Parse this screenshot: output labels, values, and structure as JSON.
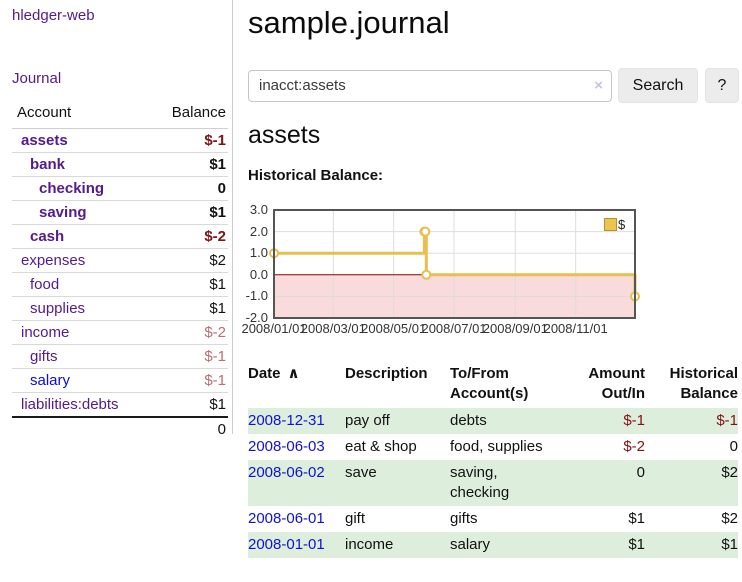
{
  "app": {
    "brand": "hledger-web",
    "nav_journal": "Journal"
  },
  "colors": {
    "link_purple": "#551a8b",
    "link_blue": "#1111d4",
    "negative_strong": "#801313",
    "negative_soft": "#b96e74",
    "row_stripe_green": "#ddeedd",
    "chart_gold": "#e7bf4e",
    "chart_negative_region": "#f9dbdb",
    "chart_zero_line": "#8e0000"
  },
  "sidebar": {
    "col_account": "Account",
    "col_balance": "Balance",
    "accounts": [
      {
        "name": "assets",
        "level": 0,
        "bold": true,
        "balance": "$-1",
        "negative": true
      },
      {
        "name": "bank",
        "level": 1,
        "bold": true,
        "balance": "$1",
        "negative": false
      },
      {
        "name": "checking",
        "level": 2,
        "bold": true,
        "balance": "0",
        "negative": false
      },
      {
        "name": "saving",
        "level": 2,
        "bold": true,
        "balance": "$1",
        "negative": false
      },
      {
        "name": "cash",
        "level": 1,
        "bold": true,
        "balance": "$-2",
        "negative": true
      },
      {
        "name": "expenses",
        "level": 0,
        "bold": false,
        "balance": "$2",
        "negative": false
      },
      {
        "name": "food",
        "level": 1,
        "bold": false,
        "balance": "$1",
        "negative": false
      },
      {
        "name": "supplies",
        "level": 1,
        "bold": false,
        "balance": "$1",
        "negative": false
      },
      {
        "name": "income",
        "level": 0,
        "bold": false,
        "balance": "$-2",
        "negative": true
      },
      {
        "name": "gifts",
        "level": 1,
        "bold": false,
        "balance": "$-1",
        "negative": true
      },
      {
        "name": "salary",
        "level": 1,
        "bold": false,
        "balance": "$-1",
        "negative": true,
        "unvisited": true
      },
      {
        "name": "liabilities:debts",
        "level": 0,
        "bold": false,
        "balance": "$1",
        "negative": false
      }
    ],
    "total": "0"
  },
  "main": {
    "title": "sample.journal",
    "search": {
      "value": "inacct:assets",
      "clear_icon": "×",
      "button_label": "Search",
      "help_label": "?"
    },
    "account_heading": "assets"
  },
  "chart_data": {
    "type": "line",
    "step": "after",
    "title": "Historical Balance:",
    "x_range": [
      "2008-01-01",
      "2008-12-31"
    ],
    "ylim": [
      -2,
      3
    ],
    "y_ticks": [
      "3.0",
      "2.0",
      "1.0",
      "0.0",
      "-1.0",
      "-2.0"
    ],
    "x_ticks": [
      "2008/01/01",
      "2008/03/01",
      "2008/05/01",
      "2008/07/01",
      "2008/09/01",
      "2008/11/01"
    ],
    "series": [
      {
        "name": "$",
        "color": "#e7bf4e",
        "points": [
          [
            "2008-01-01",
            1
          ],
          [
            "2008-06-01",
            2
          ],
          [
            "2008-06-02",
            2
          ],
          [
            "2008-06-03",
            0
          ],
          [
            "2008-12-31",
            -1
          ]
        ]
      }
    ],
    "legend": {
      "position": "top-right",
      "label": "$",
      "swatch_color": "#ecc44f"
    },
    "grid": true,
    "negative_region_color": "#f9dbdb",
    "zero_line_color": "#8e0000",
    "border_color": "#555555",
    "gridline_color": "#dddddd"
  },
  "register": {
    "headers": [
      "Date",
      "Description",
      "To/From Account(s)",
      "Amount Out/In",
      "Historical Balance"
    ],
    "sort_indicator": "∧",
    "rows": [
      {
        "date": "2008-12-31",
        "description": "pay off",
        "accounts": "debts",
        "amount": "$-1",
        "amount_negative": true,
        "balance": "$-1",
        "balance_negative": true
      },
      {
        "date": "2008-06-03",
        "description": "eat & shop",
        "accounts": "food, supplies",
        "amount": "$-2",
        "amount_negative": true,
        "balance": "0",
        "balance_negative": false
      },
      {
        "date": "2008-06-02",
        "description": "save",
        "accounts": "saving,\nchecking",
        "amount": "0",
        "amount_negative": false,
        "balance": "$2",
        "balance_negative": false
      },
      {
        "date": "2008-06-01",
        "description": "gift",
        "accounts": "gifts",
        "amount": "$1",
        "amount_negative": false,
        "balance": "$2",
        "balance_negative": false
      },
      {
        "date": "2008-01-01",
        "description": "income",
        "accounts": "salary",
        "amount": "$1",
        "amount_negative": false,
        "balance": "$1",
        "balance_negative": false
      }
    ]
  }
}
